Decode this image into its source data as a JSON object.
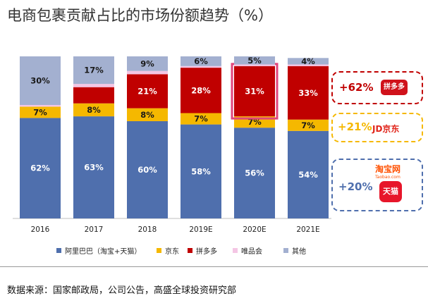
{
  "title": "电商包裹贡献占比的市场份额趋势（%）",
  "source": "数据来源：国家邮政局，公司公告，高盛全球投资研究部",
  "chart_data": {
    "type": "bar",
    "stacked": true,
    "categories": [
      "2016",
      "2017",
      "2018",
      "2019E",
      "2020E",
      "2021E"
    ],
    "ylim": [
      0,
      100
    ],
    "grid": false,
    "legend_position": "bottom",
    "series": [
      {
        "name": "阿里巴巴（淘宝+天猫）",
        "color": "#4f6fad",
        "values": [
          62,
          63,
          60,
          58,
          56,
          54
        ],
        "labels": [
          "62%",
          "63%",
          "60%",
          "58%",
          "56%",
          "54%"
        ]
      },
      {
        "name": "京东",
        "color": "#f5b800",
        "values": [
          7,
          8,
          8,
          7,
          7,
          7
        ],
        "labels": [
          "7%",
          "8%",
          "8%",
          "7%",
          "7%",
          "7%"
        ]
      },
      {
        "name": "拼多多",
        "color": "#c00000",
        "values": [
          0,
          10,
          21,
          28,
          31,
          33
        ],
        "labels": [
          "",
          "",
          "21%",
          "28%",
          "31%",
          "33%"
        ]
      },
      {
        "name": "唯品会",
        "color": "#f4c6e4",
        "values": [
          1,
          2,
          2,
          1,
          1,
          1
        ],
        "labels": [
          "",
          "",
          "",
          "",
          "",
          ""
        ]
      },
      {
        "name": "其他",
        "color": "#a3b0d0",
        "values": [
          30,
          17,
          9,
          6,
          5,
          4
        ],
        "labels": [
          "30%",
          "17%",
          "9%",
          "6%",
          "5%",
          "4%"
        ]
      }
    ],
    "highlight": {
      "category": "2020E",
      "series": "拼多多",
      "color": "#e0457b"
    },
    "annotations": [
      {
        "text": "+62%",
        "color": "#c00000",
        "brand": "拼多多",
        "brand_logo": "pinduoduo-logo"
      },
      {
        "text": "+21%",
        "color": "#f5b800",
        "brand": "京东",
        "brand_logo": "jd-logo",
        "logo_text": "JD京东"
      },
      {
        "text": "+20%",
        "color": "#4f6fad",
        "brand": "淘宝+天猫",
        "brand_logo": "taobao-tmall-logo",
        "logo_text_top": "淘宝网",
        "logo_text_sub": "Taobao.com",
        "logo_text_bottom": "天猫"
      }
    ]
  }
}
